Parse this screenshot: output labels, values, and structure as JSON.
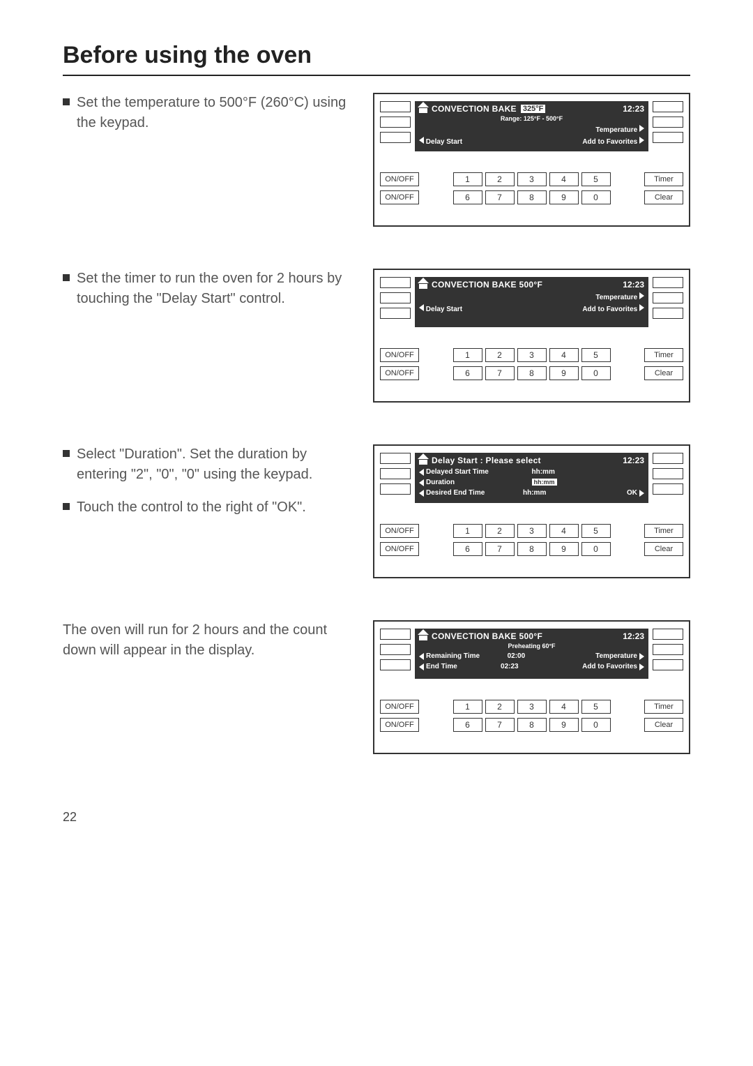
{
  "page_title": "Before using the oven",
  "page_number": "22",
  "steps": [
    {
      "bullets": [
        "Set the temperature to 500°F (260°C) using the keypad."
      ],
      "panel": {
        "show_home": true,
        "title": "CONVECTION BAKE",
        "temp_badge": "325°F",
        "clock": "12:23",
        "subtitle": "Range: 125°F - 500°F",
        "lines": [
          {
            "layout": "lr",
            "left": "",
            "right_label": "Temperature",
            "right_arrow": true
          },
          {
            "layout": "lr",
            "left_arrow": true,
            "left_label": "Delay Start",
            "right_label": "Add to Favorites",
            "right_arrow": true
          }
        ]
      }
    },
    {
      "bullets": [
        "Set the timer to run the oven for 2 hours by touching the \"Delay Start\" control."
      ],
      "panel": {
        "show_home": true,
        "title": "CONVECTION BAKE 500°F",
        "clock": "12:23",
        "lines": [
          {
            "layout": "lr",
            "left": "",
            "right_label": "Temperature",
            "right_arrow": true
          },
          {
            "layout": "lr",
            "left_arrow": true,
            "left_label": "Delay Start",
            "right_label": "Add to Favorites",
            "right_arrow": true
          }
        ]
      }
    },
    {
      "bullets": [
        "Select \"Duration\". Set the duration by entering \"2\", \"0\", \"0\" using the keypad.",
        "Touch the control to the right of \"OK\"."
      ],
      "panel": {
        "show_home": true,
        "title": "Delay Start : Please select",
        "clock": "12:23",
        "lines": [
          {
            "layout": "3col",
            "left_arrow": true,
            "left_label": "Delayed Start Time",
            "mid": "hh:mm"
          },
          {
            "layout": "3col",
            "left_arrow": true,
            "left_label": "Duration",
            "mid_box": "hh:mm"
          },
          {
            "layout": "3col",
            "left_arrow": true,
            "left_label": "Desired End Time",
            "mid": "hh:mm",
            "right_label": "OK",
            "right_arrow": true
          }
        ]
      }
    },
    {
      "plain": "The oven will run for 2 hours and the count down will appear in the display.",
      "panel": {
        "show_home": true,
        "title": "CONVECTION BAKE 500°F",
        "clock": "12:23",
        "subtitle": "Preheating 60°F",
        "lines": [
          {
            "layout": "3col",
            "left_arrow": true,
            "left_label": "Remaining Time",
            "mid": "02:00",
            "right_label": "Temperature",
            "right_arrow": true
          },
          {
            "layout": "3col",
            "left_arrow": true,
            "left_label": "End Time",
            "mid": "02:23",
            "right_label": "Add to Favorites",
            "right_arrow": true
          }
        ]
      }
    }
  ],
  "keypad": {
    "onoff": "ON/OFF",
    "row1": [
      "1",
      "2",
      "3",
      "4",
      "5"
    ],
    "row2": [
      "6",
      "7",
      "8",
      "9",
      "0"
    ],
    "timer": "Timer",
    "clear": "Clear"
  }
}
